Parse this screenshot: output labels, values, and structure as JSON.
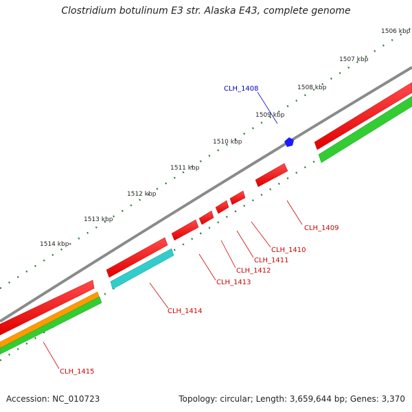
{
  "title": "Clostridium botulinum E3 str. Alaska E43, complete genome",
  "footer": {
    "accession": "Accession: NC_010723",
    "summary": "Topology: circular; Length: 3,659,644 bp; Genes: 3,370"
  },
  "ticks": [
    "1506 kbp",
    "1507 kbp",
    "1508 kbp",
    "1509 kbp",
    "1510 kbp",
    "1511 kbp",
    "1512 kbp",
    "1513 kbp",
    "1514 kbp"
  ],
  "genes": [
    "CLH_1408",
    "CLH_1409",
    "CLH_1410",
    "CLH_1411",
    "CLH_1412",
    "CLH_1413",
    "CLH_1414",
    "CLH_1415"
  ],
  "colors": {
    "backbone": "#888888",
    "cds": "#ff1a1a",
    "trna": "#33cccc",
    "orange": "#ff9900",
    "green": "#33cc33",
    "blue": "#1a1aff",
    "label_red": "#cc0000",
    "label_blue": "#0000cc",
    "tick": "#2e7d32"
  }
}
